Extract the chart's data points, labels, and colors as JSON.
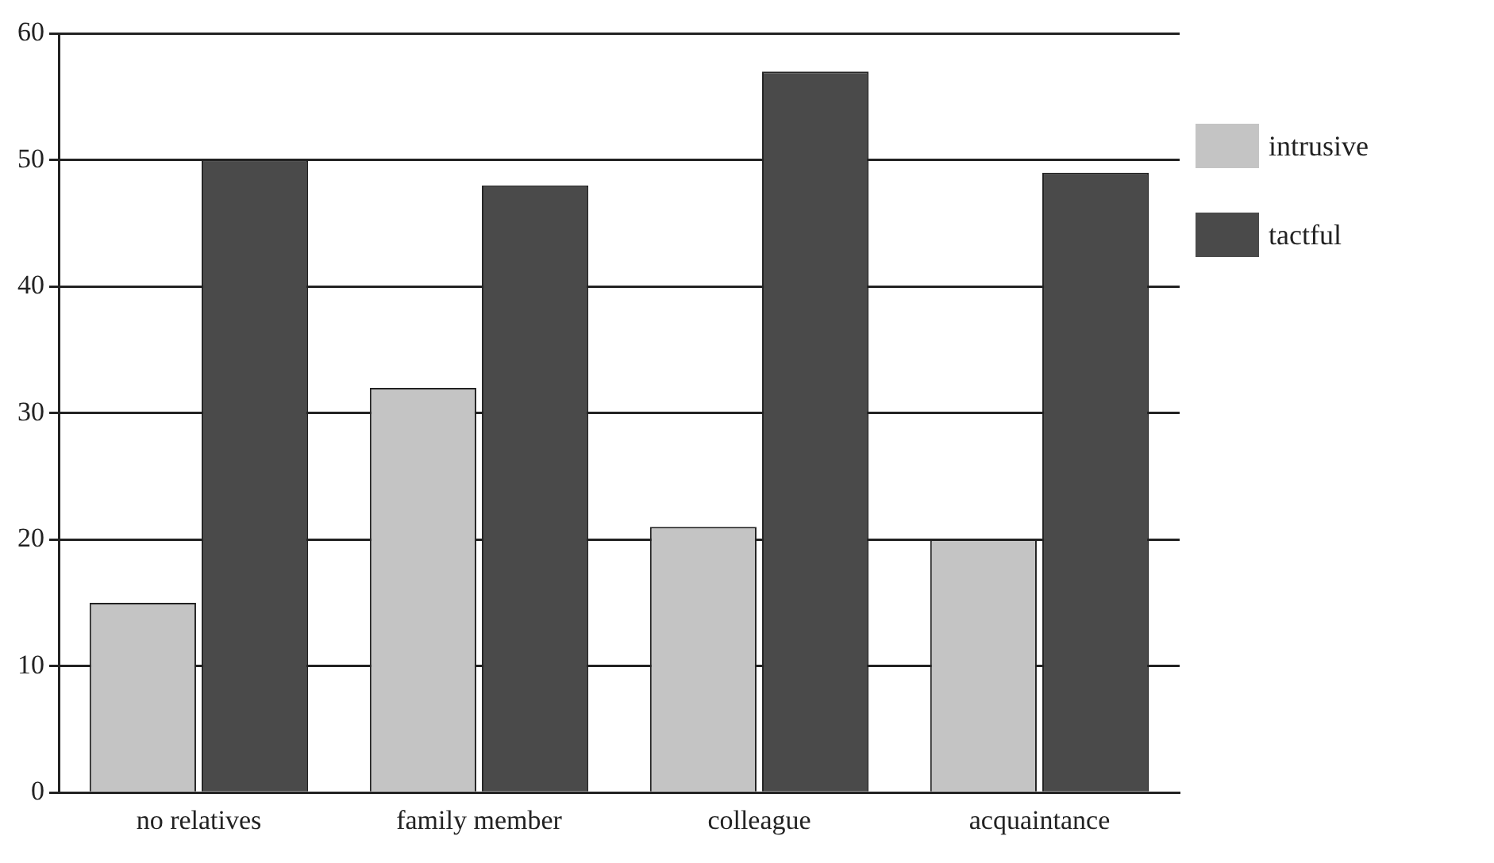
{
  "chart_data": {
    "type": "bar",
    "categories": [
      "no relatives",
      "family member",
      "colleague",
      "acquaintance"
    ],
    "series": [
      {
        "name": "intrusive",
        "color": "#c4c4c4",
        "values": [
          15,
          32,
          21,
          20
        ]
      },
      {
        "name": "tactful",
        "color": "#4a4a4a",
        "values": [
          50,
          48,
          57,
          49
        ]
      }
    ],
    "ylim": [
      0,
      60
    ],
    "yticks": [
      0,
      10,
      20,
      30,
      40,
      50,
      60
    ],
    "grid": "y",
    "legend": "right"
  }
}
